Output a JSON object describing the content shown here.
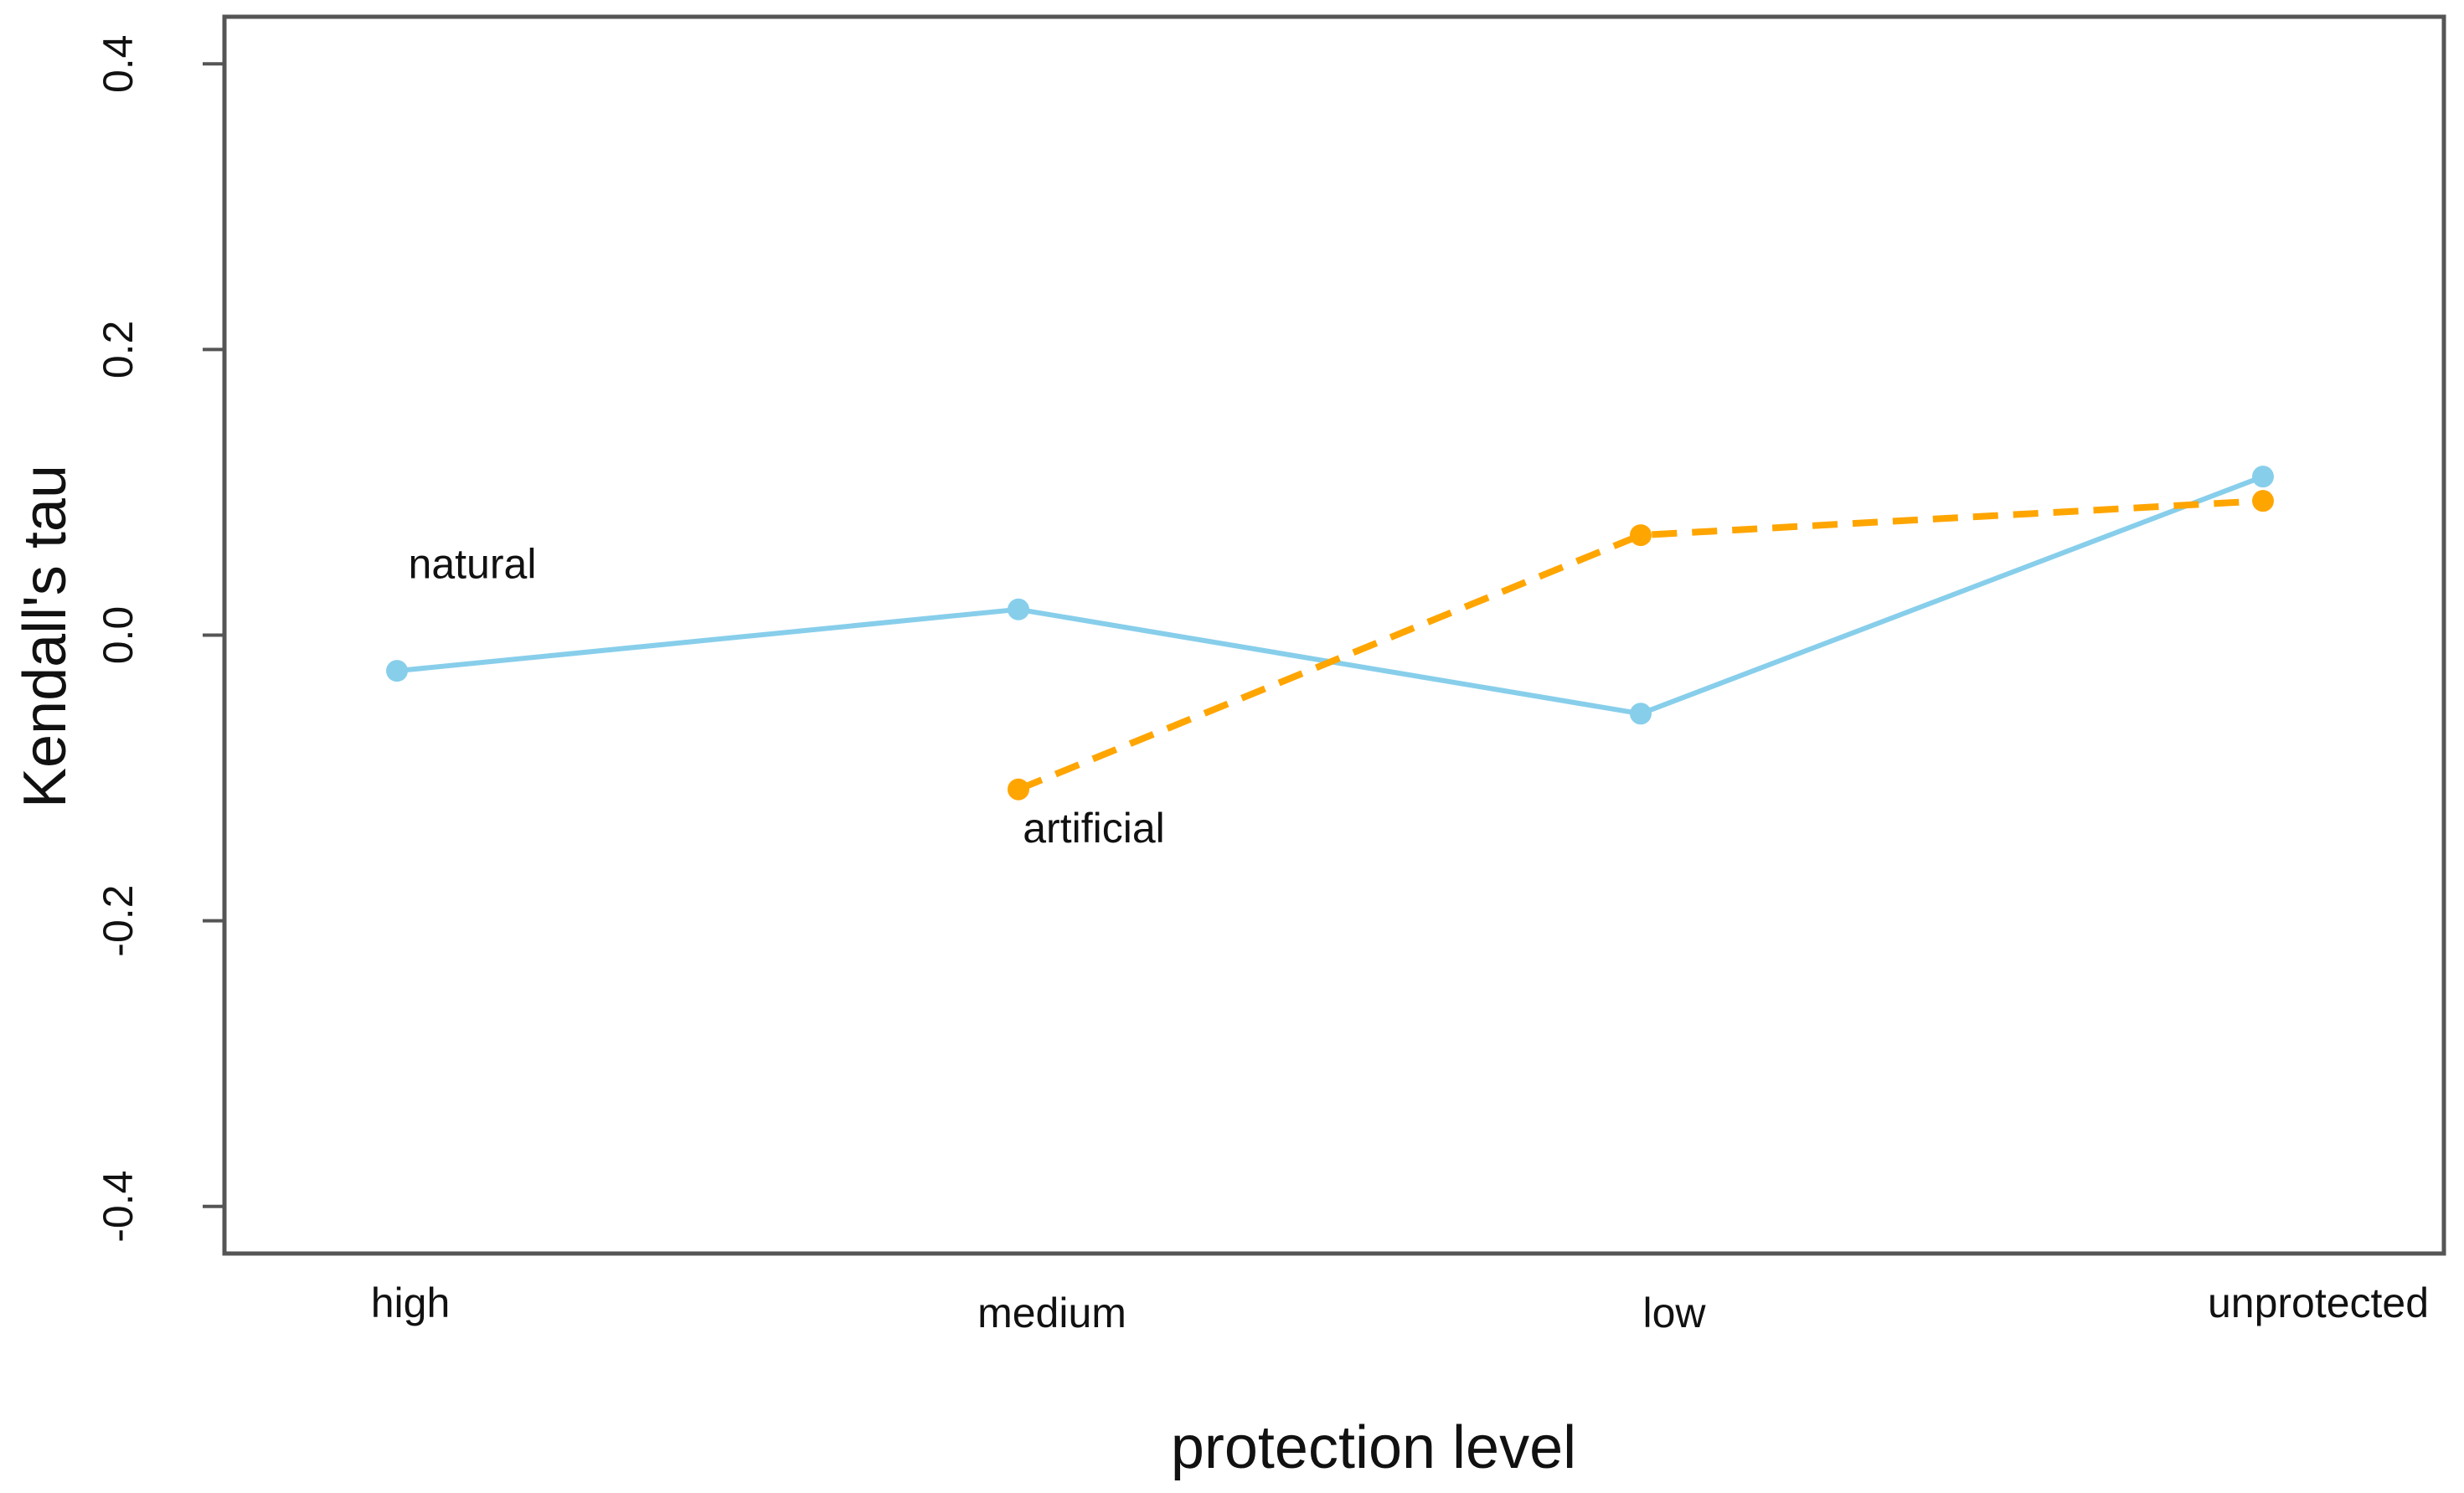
{
  "chart_data": {
    "type": "line",
    "title": "",
    "xlabel": "protection level",
    "ylabel": "Kendall's tau",
    "categories": [
      "high",
      "medium",
      "low",
      "unprotected"
    ],
    "ylim": [
      -0.433,
      0.433
    ],
    "yticks": [
      -0.4,
      -0.2,
      0.0,
      0.2,
      0.4
    ],
    "ytick_labels": [
      "-0.4",
      "-0.2",
      "0.0",
      "0.2",
      "0.4"
    ],
    "grid": false,
    "series": [
      {
        "name": "natural",
        "color": "#87CEEB",
        "linestyle": "solid",
        "values": [
          -0.025,
          0.018,
          -0.055,
          0.111
        ]
      },
      {
        "name": "artificial",
        "color": "#FFA500",
        "linestyle": "dashed",
        "values": [
          null,
          -0.108,
          0.07,
          0.094
        ]
      }
    ],
    "annotations": [
      {
        "text": "natural",
        "series": "natural",
        "category": "high",
        "y": 0.04
      },
      {
        "text": "artificial",
        "series": "artificial",
        "category": "medium",
        "y": -0.145
      }
    ]
  }
}
